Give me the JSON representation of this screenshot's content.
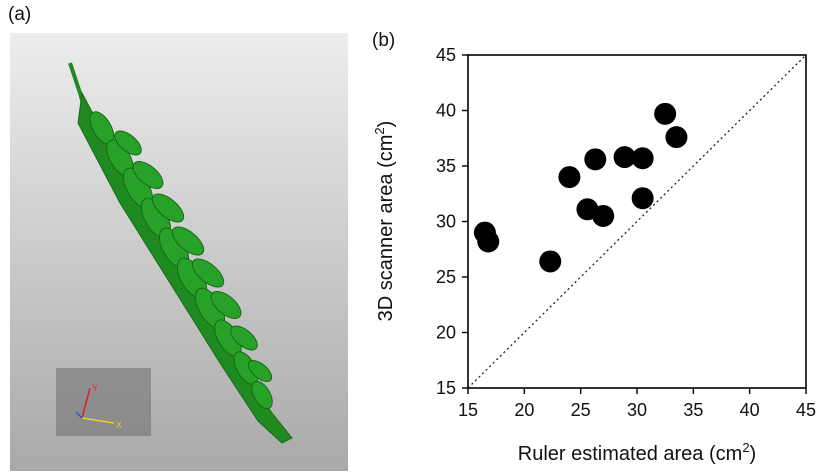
{
  "figure": {
    "panel_a_label": "(a)",
    "panel_b_label": "(b)"
  },
  "render": {
    "subject": "wheat-spike-3d-model",
    "colors": {
      "background_top": "#ededed",
      "background_bottom": "#a9a9a9",
      "spike": "#1f8a1f",
      "axis_y": "#e02020",
      "axis_x": "#e8d020"
    },
    "gizmo_labels": {
      "y": "Y",
      "x": "X"
    }
  },
  "chart_data": {
    "type": "scatter",
    "xlabel_main": "Ruler estimated area (cm",
    "xlabel_sup": "2",
    "xlabel_end": ")",
    "ylabel_main": "3D scanner area (cm",
    "ylabel_sup": "2",
    "ylabel_end": ")",
    "xlim": [
      15,
      45
    ],
    "ylim": [
      15,
      45
    ],
    "x_ticks": [
      15,
      20,
      25,
      30,
      35,
      40,
      45
    ],
    "y_ticks": [
      15,
      20,
      25,
      30,
      35,
      40,
      45
    ],
    "reference_line": "1:1 dotted",
    "points": [
      {
        "x": 16.5,
        "y": 29.0
      },
      {
        "x": 16.8,
        "y": 28.2
      },
      {
        "x": 22.3,
        "y": 26.4
      },
      {
        "x": 24.0,
        "y": 34.0
      },
      {
        "x": 25.6,
        "y": 31.1
      },
      {
        "x": 26.3,
        "y": 35.6
      },
      {
        "x": 27.0,
        "y": 30.5
      },
      {
        "x": 28.9,
        "y": 35.8
      },
      {
        "x": 30.5,
        "y": 35.7
      },
      {
        "x": 30.5,
        "y": 32.1
      },
      {
        "x": 32.5,
        "y": 39.7
      },
      {
        "x": 33.5,
        "y": 37.6
      }
    ],
    "marker_color": "#000000",
    "grid": false,
    "legend": "none"
  }
}
